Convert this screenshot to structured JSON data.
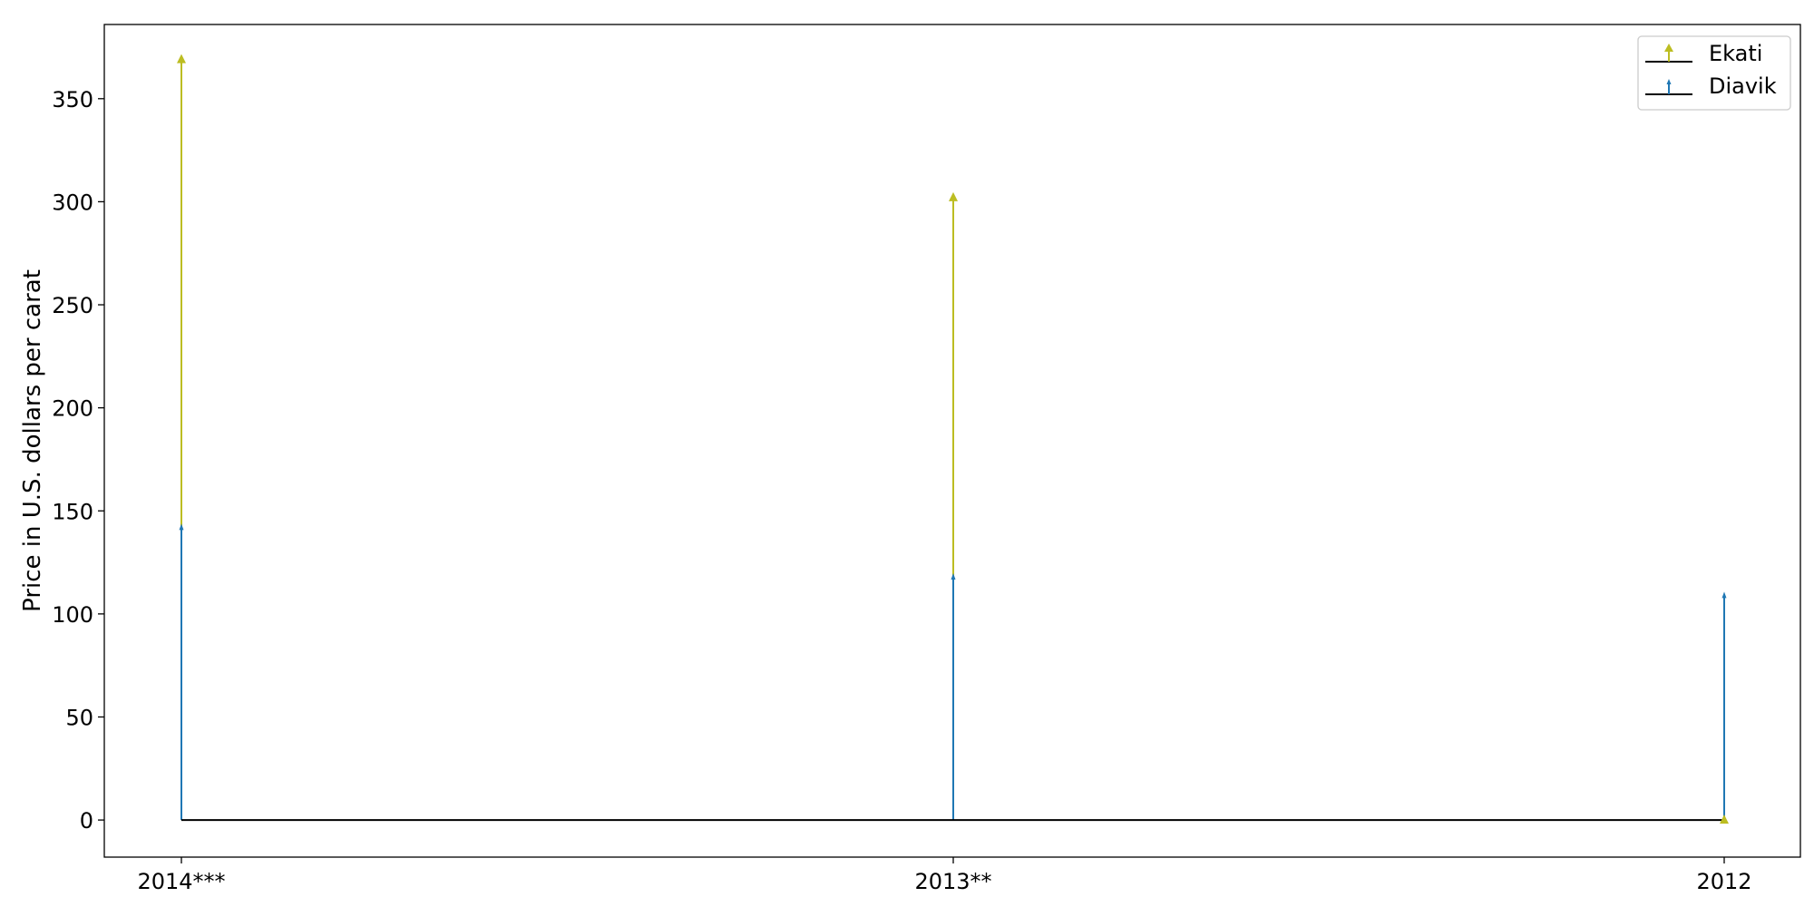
{
  "chart_data": {
    "type": "stem",
    "title": "",
    "xlabel": "",
    "ylabel": "Price in U.S. dollars per carat",
    "categories": [
      "2014***",
      "2013**",
      "2012"
    ],
    "ylim": [
      -18,
      386
    ],
    "yticks": [
      0,
      50,
      100,
      150,
      200,
      250,
      300,
      350
    ],
    "grid": false,
    "legend_position": "top-right",
    "baseline": 0,
    "series": [
      {
        "name": "Ekati",
        "values": [
          369,
          302,
          0
        ],
        "color": "#bcbd22",
        "marker": "triangle-up"
      },
      {
        "name": "Diavik",
        "values": [
          142,
          118,
          109
        ],
        "color": "#1f77b4",
        "marker": "thin-triangle-up"
      }
    ]
  }
}
